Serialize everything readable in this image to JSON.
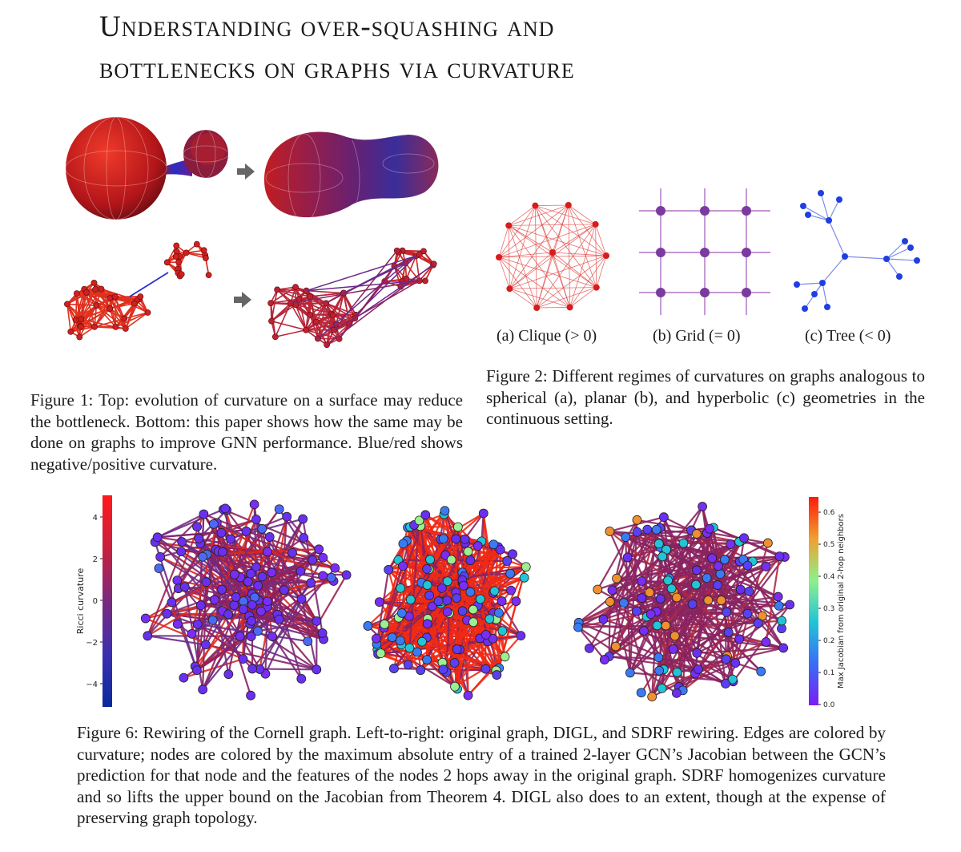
{
  "title_lines": [
    "Understanding over-squashing and",
    "bottlenecks on graphs via curvature"
  ],
  "figure1": {
    "caption": "Figure 1: Top: evolution of curvature on a surface may reduce the bottleneck. Bottom: this paper shows how the same may be done on graphs to improve GNN performance. Blue/red shows negative/positive curvature."
  },
  "figure2": {
    "subcaptions": [
      "(a) Clique (> 0)",
      "(b) Grid (= 0)",
      "(c) Tree (< 0)"
    ],
    "caption": "Figure 2: Different regimes of curvatures on graphs analogous to spherical (a), planar (b), and hyperbolic (c) geometries in the continuous setting."
  },
  "figure6": {
    "left_colorbar": {
      "label": "Ricci curvature",
      "ticks": [
        "4",
        "2",
        "0",
        "−2",
        "−4"
      ]
    },
    "right_colorbar": {
      "label": "Max Jacobian from original 2-hop neighbors",
      "ticks": [
        "0.6",
        "0.5",
        "0.4",
        "0.3",
        "0.2",
        "0.1",
        "0.0"
      ]
    },
    "caption": "Figure 6: Rewiring of the Cornell graph. Left-to-right: original graph, DIGL, and SDRF rewiring. Edges are colored by curvature; nodes are colored by the maximum absolute entry of a trained 2-layer GCN’s Jacobian between the GCN’s prediction for that node and the features of the nodes 2 hops away in the original graph. SDRF homogenizes curvature and so lifts the upper bound on the Jacobian from Theorem 4. DIGL also does to an extent, though at the expense of preserving graph topology."
  },
  "colors": {
    "red": "#e32b1c",
    "blue": "#2b3fd6",
    "purple": "#7a2a8a",
    "edge_purple": "#8a2460",
    "node_violet": "#6b2cf0",
    "arrow_gray": "#666666"
  }
}
